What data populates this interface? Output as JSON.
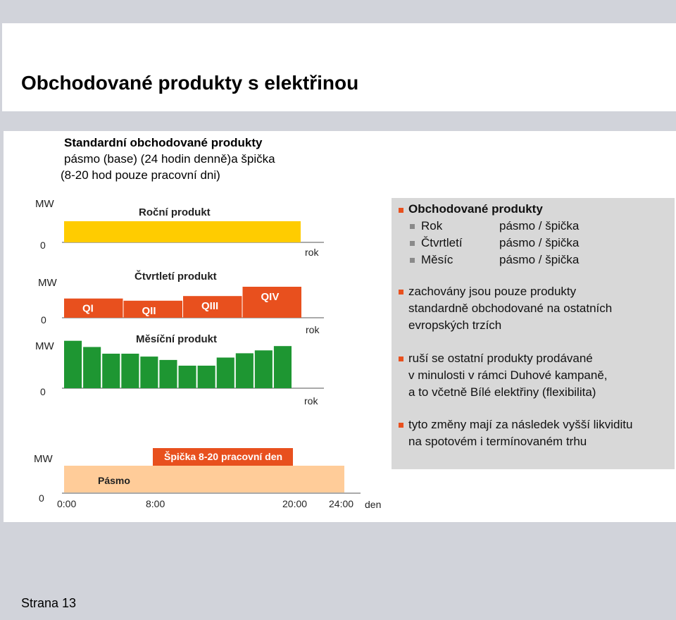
{
  "slide": {
    "title": "Obchodované produkty s elektřinou",
    "footer": "Strana 13"
  },
  "diagram": {
    "heading": {
      "line1": "Standardní obchodované produkty",
      "line2": "pásmo (base) (24 hodin denně)a špička",
      "line3": "(8-20 hod pouze pracovní dni)"
    },
    "axis_unit": "MW",
    "zero": "0",
    "period_label": "rok",
    "annual": {
      "label": "Roční produkt",
      "color": "#ffcc00"
    },
    "quarterly": {
      "label": "Čtvrtletí produkt",
      "color": "#e8501e",
      "quarters": [
        {
          "name": "QI",
          "level": 0.62
        },
        {
          "name": "QII",
          "level": 0.55
        },
        {
          "name": "QIII",
          "level": 0.7
        },
        {
          "name": "QIV",
          "level": 1.0
        }
      ]
    },
    "monthly": {
      "label": "Měsíční produkt",
      "color": "#1e9632",
      "levels": [
        0.99,
        0.86,
        0.72,
        0.72,
        0.66,
        0.59,
        0.47,
        0.47,
        0.64,
        0.73,
        0.79,
        0.88
      ]
    },
    "daily": {
      "base_label": "Pásmo",
      "peak_label": "Špička 8-20 pracovní den",
      "base_color": "#ffcc99",
      "peak_color": "#e8501e",
      "ticks": [
        "0:00",
        "8:00",
        "20:00",
        "24:00"
      ],
      "axis_end": "den"
    }
  },
  "panel": {
    "heading": "Obchodované produkty",
    "items": [
      {
        "name": "Rok",
        "value": "pásmo / špička"
      },
      {
        "name": "Čtvrtletí",
        "value": "pásmo / špička"
      },
      {
        "name": "Měsíc",
        "value": "pásmo / špička"
      }
    ],
    "point1": {
      "l1": "zachovány jsou pouze produkty",
      "l2": "standardně obchodované na ostatních",
      "l3": "evropských trzích"
    },
    "point2": {
      "l1": "ruší se ostatní produkty prodávané",
      "l2": "v minulosti v rámci Duhové kampaně,",
      "l3": "a to včetně Bílé elektřiny (flexibilita)"
    },
    "point3": {
      "l1": "tyto změny mají za následek vyšší likviditu",
      "l2": "na spotovém i termínovaném trhu"
    }
  }
}
